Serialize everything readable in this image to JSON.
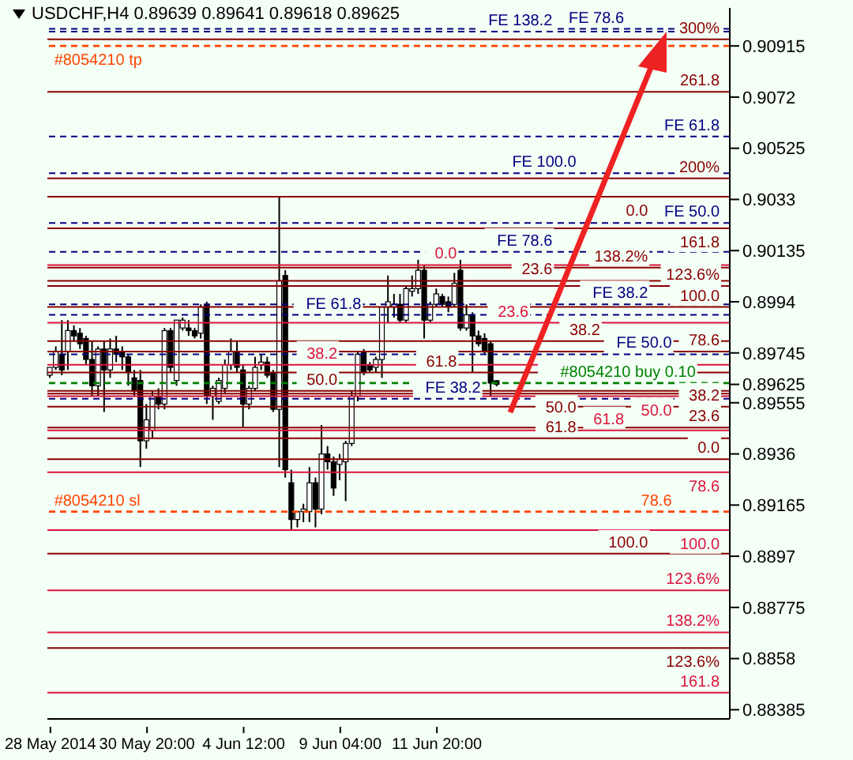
{
  "chart_data": {
    "type": "candlestick",
    "title": "USDCHF,H4  0.89639 0.89641 0.89618 0.89625",
    "categories": [
      "28 May 2014",
      null,
      null,
      null,
      null,
      null,
      null,
      null,
      null,
      null,
      null,
      null,
      null,
      null,
      null,
      null,
      "30 May 20:00",
      null,
      null,
      null,
      null,
      null,
      null,
      null,
      null,
      null,
      null,
      null,
      null,
      null,
      null,
      null,
      "4 Jun 12:00",
      null,
      null,
      null,
      null,
      null,
      null,
      null,
      null,
      null,
      null,
      null,
      null,
      null,
      null,
      null,
      "9 Jun 04:00",
      null,
      null,
      null,
      null,
      null,
      null,
      null,
      null,
      null,
      null,
      null,
      null,
      null,
      null,
      null,
      "11 Jun 20:00",
      null,
      null,
      null,
      null,
      null,
      null,
      null,
      null,
      null,
      null,
      null,
      null,
      null,
      null,
      null,
      null,
      null,
      null,
      null,
      null,
      null,
      null,
      null,
      null,
      null,
      null,
      null,
      null,
      null,
      null,
      null,
      null,
      null,
      null,
      null,
      null,
      null,
      null,
      null,
      null,
      null,
      null,
      null,
      null,
      null,
      null,
      null,
      null
    ],
    "ohlc": [
      [
        0.8966,
        0.8969,
        0.8965,
        0.8969
      ],
      [
        0.8969,
        0.8977,
        0.8968,
        0.8975
      ],
      [
        0.8974,
        0.8987,
        0.8966,
        0.8968
      ],
      [
        0.8975,
        0.8987,
        0.8968,
        0.8983
      ],
      [
        0.8983,
        0.8985,
        0.8979,
        0.8981
      ],
      [
        0.8982,
        0.8984,
        0.8976,
        0.8978
      ],
      [
        0.898,
        0.8981,
        0.897,
        0.8972
      ],
      [
        0.8972,
        0.8979,
        0.8958,
        0.8962
      ],
      [
        0.8962,
        0.8977,
        0.8958,
        0.8976
      ],
      [
        0.8976,
        0.8979,
        0.8952,
        0.8968
      ],
      [
        0.8968,
        0.898,
        0.8965,
        0.8976
      ],
      [
        0.8976,
        0.8981,
        0.8971,
        0.8974
      ],
      [
        0.8975,
        0.8977,
        0.8968,
        0.8973
      ],
      [
        0.8973,
        0.8974,
        0.8962,
        0.8967
      ],
      [
        0.8965,
        0.8968,
        0.8958,
        0.896
      ],
      [
        0.8964,
        0.8968,
        0.8931,
        0.8941
      ],
      [
        0.8941,
        0.8955,
        0.8938,
        0.8949
      ],
      [
        0.8945,
        0.896,
        0.8942,
        0.8958
      ],
      [
        0.8958,
        0.8961,
        0.8953,
        0.8955
      ],
      [
        0.8955,
        0.8984,
        0.8953,
        0.8983
      ],
      [
        0.8983,
        0.8984,
        0.8967,
        0.8969
      ],
      [
        0.8964,
        0.8987,
        0.8962,
        0.8987
      ],
      [
        0.8984,
        0.8988,
        0.8983,
        0.8987
      ],
      [
        0.8984,
        0.8987,
        0.8981,
        0.8983
      ],
      [
        0.8983,
        0.8984,
        0.898,
        0.8981
      ],
      [
        0.8982,
        0.8993,
        0.898,
        0.8992
      ],
      [
        0.8993,
        0.8994,
        0.8955,
        0.8958
      ],
      [
        0.8958,
        0.8962,
        0.8949,
        0.8961
      ],
      [
        0.8956,
        0.8965,
        0.8955,
        0.8964
      ],
      [
        0.8961,
        0.8972,
        0.8959,
        0.897
      ],
      [
        0.897,
        0.898,
        0.8968,
        0.8975
      ],
      [
        0.8975,
        0.8979,
        0.8967,
        0.8969
      ],
      [
        0.8968,
        0.897,
        0.8946,
        0.8955
      ],
      [
        0.8955,
        0.8962,
        0.8953,
        0.8961
      ],
      [
        0.8961,
        0.8973,
        0.896,
        0.8969
      ],
      [
        0.897,
        0.8974,
        0.8968,
        0.8971
      ],
      [
        0.8971,
        0.8973,
        0.8965,
        0.8966
      ],
      [
        0.8967,
        0.8968,
        0.8952,
        0.8953
      ],
      [
        0.8953,
        0.9034,
        0.8931,
        0.9002
      ],
      [
        0.9004,
        0.9006,
        0.8927,
        0.893
      ],
      [
        0.8925,
        0.893,
        0.8907,
        0.8911
      ],
      [
        0.8911,
        0.8914,
        0.8908,
        0.8914
      ],
      [
        0.8914,
        0.8917,
        0.891,
        0.8915
      ],
      [
        0.8914,
        0.8931,
        0.891,
        0.8925
      ],
      [
        0.8925,
        0.8927,
        0.8908,
        0.8915
      ],
      [
        0.8915,
        0.8947,
        0.8913,
        0.8936
      ],
      [
        0.8936,
        0.8939,
        0.893,
        0.8933
      ],
      [
        0.8933,
        0.8935,
        0.892,
        0.8923
      ],
      [
        0.8932,
        0.8936,
        0.8926,
        0.8934
      ],
      [
        0.8933,
        0.8941,
        0.8918,
        0.894
      ],
      [
        0.894,
        0.896,
        0.8939,
        0.8958
      ],
      [
        0.8958,
        0.8975,
        0.8956,
        0.8974
      ],
      [
        0.8975,
        0.8976,
        0.8966,
        0.8967
      ],
      [
        0.897,
        0.8971,
        0.8967,
        0.8968
      ],
      [
        0.8969,
        0.8973,
        0.8967,
        0.8972
      ],
      [
        0.8972,
        0.8992,
        0.8965,
        0.8992
      ],
      [
        0.8992,
        0.9004,
        0.8986,
        0.8994
      ],
      [
        0.8992,
        0.8997,
        0.8988,
        0.8993
      ],
      [
        0.8993,
        0.8997,
        0.8986,
        0.8987
      ],
      [
        0.8987,
        0.9,
        0.8986,
        0.8999
      ],
      [
        0.8998,
        0.9004,
        0.8996,
        0.8999
      ],
      [
        0.8999,
        0.901,
        0.8997,
        0.9006
      ],
      [
        0.9006,
        0.9008,
        0.898,
        0.8987
      ],
      [
        0.8987,
        0.8994,
        0.8986,
        0.8993
      ],
      [
        0.8993,
        0.8999,
        0.8992,
        0.8997
      ],
      [
        0.8996,
        0.8997,
        0.8992,
        0.8993
      ],
      [
        0.8994,
        0.8996,
        0.899,
        0.8992
      ],
      [
        0.8993,
        0.9005,
        0.8992,
        0.9001
      ],
      [
        0.9006,
        0.901,
        0.8983,
        0.8984
      ],
      [
        0.8984,
        0.8993,
        0.8983,
        0.8989
      ],
      [
        0.8989,
        0.899,
        0.8967,
        0.8981
      ],
      [
        0.8981,
        0.8983,
        0.8977,
        0.8978
      ],
      [
        0.898,
        0.8982,
        0.8974,
        0.8975
      ],
      [
        0.8978,
        0.8979,
        0.8958,
        0.8963
      ],
      [
        0.89639,
        0.89641,
        0.89618,
        0.89625
      ],
      null,
      null,
      null,
      null,
      null,
      null,
      null,
      null,
      null,
      null,
      null,
      null,
      null,
      null,
      null,
      null,
      null,
      null,
      null,
      null,
      null,
      null,
      null,
      null,
      null,
      null,
      null,
      null,
      null,
      null,
      null,
      null,
      null,
      null,
      null,
      null,
      null,
      null
    ],
    "ylim": [
      0.8835,
      0.9106
    ],
    "yticks": [
      0.90915,
      0.9072,
      0.90525,
      0.9033,
      0.90135,
      0.8994,
      0.89745,
      0.89625,
      0.89555,
      0.8936,
      0.89165,
      0.8897,
      0.88775,
      0.8858,
      0.88385
    ],
    "ref_lines": [
      {
        "axis": "y",
        "value": 0.9094,
        "color": "#8b0000"
      },
      {
        "axis": "y",
        "value": 0.9074,
        "color": "#8b0000"
      },
      {
        "axis": "y",
        "value": 0.9041,
        "color": "#8b0000"
      },
      {
        "axis": "y",
        "value": 0.9022,
        "color": "#8b0000"
      },
      {
        "axis": "y",
        "value": 0.9007,
        "color": "#8b0000"
      },
      {
        "axis": "y",
        "value": 0.9,
        "color": "#8b0000"
      },
      {
        "axis": "y",
        "value": 0.8992,
        "color": "#8b0000"
      },
      {
        "axis": "y",
        "value": 0.8975,
        "color": "#8b0000"
      },
      {
        "axis": "y",
        "value": 0.8967,
        "color": "#8b0000"
      },
      {
        "axis": "y",
        "value": 0.896,
        "color": "#8b0000"
      },
      {
        "axis": "y",
        "value": 0.8954,
        "color": "#8b0000"
      },
      {
        "axis": "y",
        "value": 0.8946,
        "color": "#8b0000"
      },
      {
        "axis": "y",
        "value": 0.8934,
        "color": "#8b0000"
      },
      {
        "axis": "y",
        "value": 0.9098,
        "color": "#000080",
        "line_style": "dashed"
      },
      {
        "axis": "y",
        "value": 0.9097,
        "color": "#000080",
        "line_style": "dashed"
      },
      {
        "axis": "y",
        "value": 0.9057,
        "color": "#000080",
        "line_style": "dashed"
      },
      {
        "axis": "y",
        "value": 0.9043,
        "color": "#000080",
        "line_style": "dashed"
      },
      {
        "axis": "y",
        "value": 0.9024,
        "color": "#000080",
        "line_style": "dashed"
      },
      {
        "axis": "y",
        "value": 0.9013,
        "color": "#000080",
        "line_style": "dashed"
      },
      {
        "axis": "y",
        "value": 0.8993,
        "color": "#000080",
        "line_style": "dashed"
      },
      {
        "axis": "y",
        "value": 0.8989,
        "color": "#000080",
        "line_style": "dashed"
      },
      {
        "axis": "y",
        "value": 0.8974,
        "color": "#000080",
        "line_style": "dashed"
      },
      {
        "axis": "y",
        "value": 0.8957,
        "color": "#000080",
        "line_style": "dashed"
      },
      {
        "axis": "y",
        "value": 0.9008,
        "color": "#dc143c"
      },
      {
        "axis": "y",
        "value": 0.8986,
        "color": "#dc143c"
      },
      {
        "axis": "y",
        "value": 0.897,
        "color": "#dc143c"
      },
      {
        "axis": "y",
        "value": 0.8958,
        "color": "#dc143c"
      },
      {
        "axis": "y",
        "value": 0.8945,
        "color": "#dc143c"
      },
      {
        "axis": "y",
        "value": 0.8929,
        "color": "#dc143c"
      },
      {
        "axis": "y",
        "value": 0.8907,
        "color": "#dc143c"
      },
      {
        "axis": "y",
        "value": 0.8884,
        "color": "#dc143c"
      },
      {
        "axis": "y",
        "value": 0.8868,
        "color": "#dc143c"
      },
      {
        "axis": "y",
        "value": 0.8845,
        "color": "#dc143c"
      },
      {
        "axis": "y",
        "value": 0.9034,
        "color": "#8b0000"
      },
      {
        "axis": "y",
        "value": 0.9002,
        "color": "#8b0000"
      },
      {
        "axis": "y",
        "value": 0.8979,
        "color": "#8b0000"
      },
      {
        "axis": "y",
        "value": 0.8959,
        "color": "#8b0000"
      },
      {
        "axis": "y",
        "value": 0.8942,
        "color": "#8b0000"
      },
      {
        "axis": "y",
        "value": 0.8898,
        "color": "#8b0000"
      },
      {
        "axis": "y",
        "value": 0.8862,
        "color": "#8b0000"
      },
      {
        "axis": "y",
        "value": 0.90915,
        "label": "#8054210 tp",
        "color": "#ff4500",
        "line_style": "dashed"
      },
      {
        "axis": "y",
        "value": 0.8914,
        "label": "#8054210 sl",
        "color": "#ff4500",
        "line_style": "dashed"
      },
      {
        "axis": "y",
        "value": 0.8963,
        "label": "#8054210 buy 0.10",
        "color": "#008000",
        "line_style": "dashed"
      }
    ],
    "annotations": [
      {
        "text": "300%",
        "y": 0.9094
      },
      {
        "text": "261.8",
        "y": 0.9074
      },
      {
        "text": "200%",
        "y": 0.9041
      },
      {
        "text": "161.8",
        "y": 0.9022
      },
      {
        "text": "138.2%",
        "y": 0.9007
      },
      {
        "text": "123.6%",
        "y": 0.9
      },
      {
        "text": "100.0",
        "y": 0.8992
      },
      {
        "text": "78.6",
        "y": 0.8975
      },
      {
        "text": "61.8",
        "y": 0.8967
      },
      {
        "text": "50.0",
        "y": 0.896
      },
      {
        "text": "38.2",
        "y": 0.8954
      },
      {
        "text": "23.6",
        "y": 0.8946
      },
      {
        "text": "0.0",
        "y": 0.8934
      },
      {
        "text": "FE 78.6",
        "y": 0.9098
      },
      {
        "text": "FE 138.2",
        "y": 0.9097
      },
      {
        "text": "FE 61.8",
        "y": 0.9057
      },
      {
        "text": "FE 100.0",
        "y": 0.9043
      },
      {
        "text": "FE 50.0",
        "y": 0.9024
      },
      {
        "text": "FE 78.6",
        "y": 0.9013
      },
      {
        "text": "FE 38.2",
        "y": 0.8993
      },
      {
        "text": "FE 61.8",
        "y": 0.8989
      },
      {
        "text": "FE 50.0",
        "y": 0.8974
      },
      {
        "text": "FE 38.2",
        "y": 0.8957
      },
      {
        "text": "0.0",
        "y": 0.9008
      },
      {
        "text": "23.6",
        "y": 0.8986
      },
      {
        "text": "38.2",
        "y": 0.897
      },
      {
        "text": "50.0",
        "y": 0.8958
      },
      {
        "text": "61.8",
        "y": 0.8945
      },
      {
        "text": "78.6",
        "y": 0.8929
      },
      {
        "text": "100.0",
        "y": 0.8907
      },
      {
        "text": "123.6%",
        "y": 0.8884
      },
      {
        "text": "138.2%",
        "y": 0.8868
      },
      {
        "text": "161.8",
        "y": 0.8845
      },
      {
        "text": "0.0",
        "y": 0.9034
      },
      {
        "text": "23.6",
        "y": 0.9002
      },
      {
        "text": "38.2",
        "y": 0.8979
      },
      {
        "text": "50.0",
        "y": 0.8959
      },
      {
        "text": "61.8",
        "y": 0.8942
      },
      {
        "text": "78.6",
        "y": 0.8914
      },
      {
        "text": "100.0",
        "y": 0.8898
      },
      {
        "text": "123.6%",
        "y": 0.8862
      }
    ]
  }
}
